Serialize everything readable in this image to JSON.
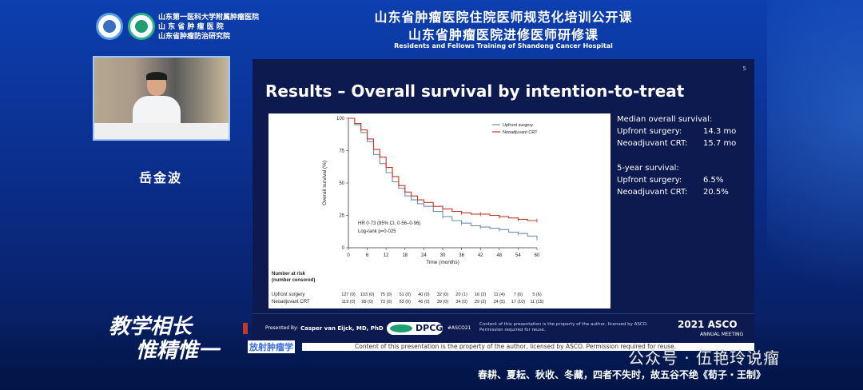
{
  "header": {
    "hospital_lines": [
      "山东第一医科大学附属肿瘤医院",
      "山 东 省 肿 瘤 医 院",
      "山东省肿瘤防治研究院"
    ],
    "title_line1": "山东省肿瘤医院住院医师规范化培训公开课",
    "title_line2": "山东省肿瘤医院进修医师研修课",
    "title_en": "Residents and Fellows Training of Shandong Cancer Hospital"
  },
  "speaker_name": "岳金波",
  "slide": {
    "number": "5",
    "title": "Results – Overall survival by intention-to-treat",
    "median_heading": "Median overall survival:",
    "median_rows": [
      {
        "label": "Upfront surgery:",
        "value": "14.3 mo"
      },
      {
        "label": "Neoadjuvant CRT:",
        "value": "15.7 mo"
      }
    ],
    "five_year_heading": "5-year survival:",
    "five_year_rows": [
      {
        "label": "Upfront surgery:",
        "value": "6.5%"
      },
      {
        "label": "Neoadjuvant CRT:",
        "value": "20.5%"
      }
    ],
    "footer": {
      "presented_by": "Presented By:",
      "presenter": "Casper van Eijck, MD, PhD",
      "org": "DPCG",
      "hashtag": "#ASCO21",
      "notice": "Content of this presentation is the property of the author, licensed by ASCO. Permission required for reuse.",
      "meeting": "2021 ASCO",
      "meeting_sub": "ANNUAL MEETING"
    }
  },
  "chart_data": {
    "type": "line",
    "xlabel": "Time (months)",
    "ylabel": "Overall survival (%)",
    "xlim": [
      0,
      60
    ],
    "ylim": [
      0,
      100
    ],
    "x_ticks": [
      0,
      6,
      12,
      18,
      24,
      30,
      36,
      42,
      48,
      54,
      60
    ],
    "y_ticks": [
      0,
      25,
      50,
      75,
      100
    ],
    "legend_position": "top-right",
    "colors": {
      "Upfront surgery": "#6e8fb0",
      "Neoadjuvant CRT": "#c0392b"
    },
    "series": [
      {
        "name": "Upfront surgery",
        "x": [
          0,
          2,
          4,
          6,
          8,
          10,
          12,
          14,
          16,
          18,
          20,
          22,
          24,
          27,
          30,
          33,
          36,
          39,
          42,
          45,
          48,
          51,
          54,
          57,
          60
        ],
        "y": [
          100,
          95,
          89,
          82,
          72,
          65,
          58,
          51,
          46,
          40,
          37,
          34,
          32,
          28,
          24,
          21,
          19,
          17,
          16,
          15,
          14,
          12,
          11,
          9,
          7
        ]
      },
      {
        "name": "Neoadjuvant CRT",
        "x": [
          0,
          2,
          4,
          6,
          8,
          10,
          12,
          14,
          16,
          18,
          20,
          22,
          24,
          27,
          30,
          33,
          36,
          39,
          42,
          45,
          48,
          51,
          54,
          57,
          60
        ],
        "y": [
          100,
          96,
          91,
          84,
          76,
          70,
          62,
          55,
          48,
          43,
          40,
          37,
          35,
          32,
          30,
          28,
          27,
          26,
          26,
          25,
          24,
          23,
          22,
          21,
          21
        ]
      }
    ],
    "annotations": [
      "HR 0·73 (95% CI, 0·56–0·96)",
      "Log-rank p=0·025"
    ],
    "risk_table": {
      "heading": [
        "Number at risk",
        "(number censored)"
      ],
      "rows": [
        {
          "name": "Upfront surgery",
          "values": [
            "127 (0)",
            "103 (0)",
            "75 (0)",
            "51 (0)",
            "40 (0)",
            "32 (0)",
            "20 (1)",
            "16 (2)",
            "11 (4)",
            "7 (6)",
            "5 (6)"
          ]
        },
        {
          "name": "Neoadjuvant CRT",
          "values": [
            "119 (0)",
            "98 (0)",
            "73 (0)",
            "53 (0)",
            "46 (0)",
            "39 (0)",
            "34 (0)",
            "29 (2)",
            "24 (5)",
            "17 (10)",
            "11 (15)"
          ]
        }
      ]
    }
  },
  "bottom": {
    "calligraphy_line1": "教学相长",
    "calligraphy_line2": "惟精惟一",
    "overlay_label": "放射肿瘤学",
    "notice": "Content of this presentation is the property of the author, licensed by ASCO. Permission required for reuse.",
    "watermark": "公众号 · 伍艳玲说瘤",
    "quote": "春耕、夏耘、秋收、冬藏，四者不失时，故五谷不绝《荀子・王制》"
  }
}
